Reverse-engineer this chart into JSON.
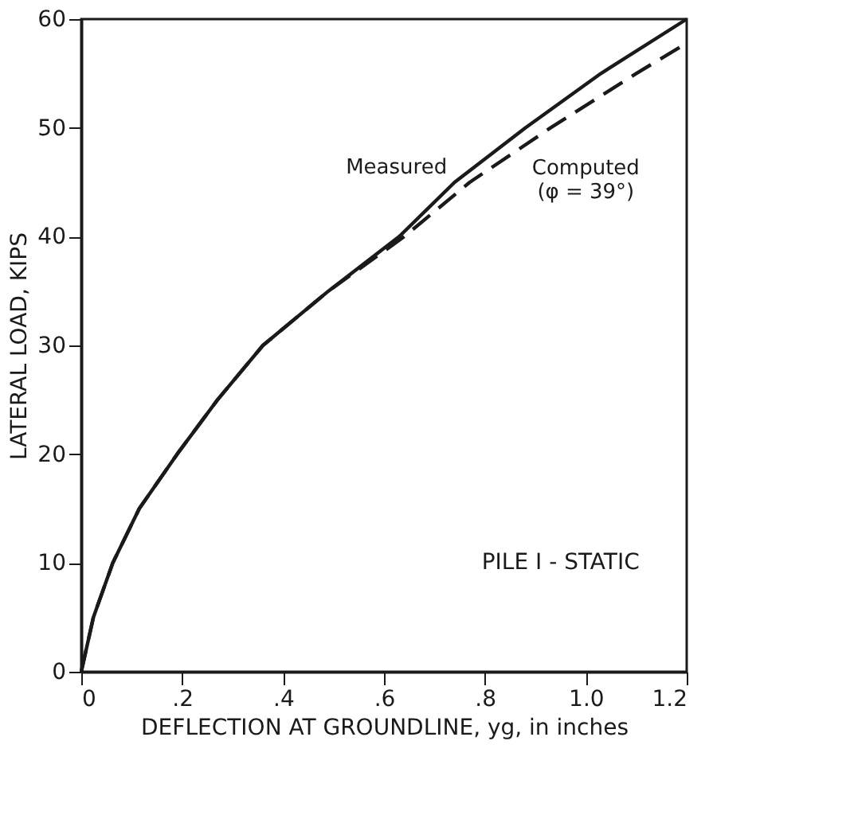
{
  "chart_data": {
    "type": "line",
    "xlabel": "DEFLECTION AT GROUNDLINE, yg, in inches",
    "ylabel": "LATERAL LOAD, KIPS",
    "xlim": [
      0,
      1.2
    ],
    "ylim": [
      0,
      60
    ],
    "xticks": [
      0,
      {
        "value": 0.2,
        "label": ".2"
      },
      {
        "value": 0.4,
        "label": ".4"
      },
      {
        "value": 0.6,
        "label": ".6"
      },
      {
        "value": 0.8,
        "label": ".8"
      },
      {
        "value": 1.0,
        "label": "1.0"
      },
      {
        "value": 1.2,
        "label": "1.2"
      }
    ],
    "yticks": [
      0,
      10,
      20,
      30,
      40,
      50,
      60
    ],
    "grid": false,
    "series": [
      {
        "name": "Measured",
        "color": "#1a1a1a",
        "line_style": "solid",
        "x": [
          0,
          0.024,
          0.0625,
          0.115,
          0.19,
          0.27,
          0.36,
          0.49,
          0.63,
          0.74,
          0.88,
          1.03,
          1.2
        ],
        "values": [
          0,
          5,
          10,
          15,
          20,
          25,
          30,
          35,
          40,
          45,
          50,
          55,
          60
        ]
      },
      {
        "name": "Computed\n(φ = 39°)",
        "color": "#1a1a1a",
        "line_style": "dashed",
        "x": [
          0,
          0.024,
          0.0625,
          0.115,
          0.19,
          0.27,
          0.36,
          0.49,
          0.64,
          0.77,
          0.93,
          1.1,
          1.2
        ],
        "values": [
          0,
          5,
          10,
          15,
          20,
          25,
          30,
          35,
          40,
          45,
          50,
          55,
          57.8
        ]
      }
    ],
    "annotations": [
      "PILE I - STATIC"
    ]
  }
}
